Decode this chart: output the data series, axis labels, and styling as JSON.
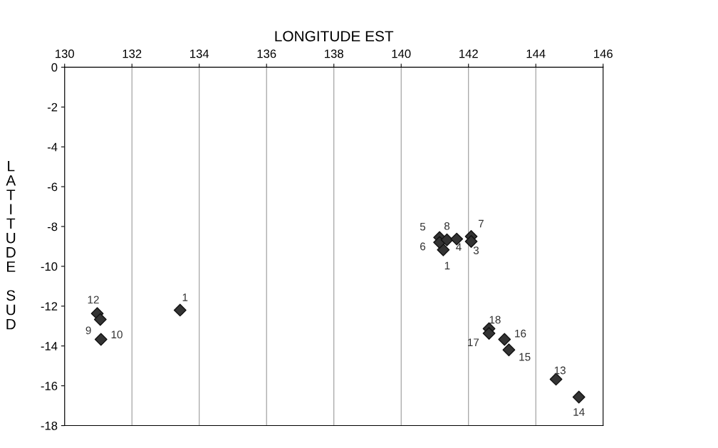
{
  "chart_data": {
    "type": "scatter",
    "xlabel": "LONGITUDE EST",
    "ylabel": "LATITUDE SUD",
    "x": [
      133.43,
      130.97,
      131.06,
      131.08,
      141.25,
      141.14,
      141.14,
      141.36,
      141.65,
      142.08,
      142.08,
      142.61,
      142.61,
      143.07,
      143.2,
      144.6,
      145.28
    ],
    "series": [
      {
        "color": "#333333",
        "values": [
          -12.2,
          -12.37,
          -12.67,
          -13.67,
          -9.17,
          -8.55,
          -8.8,
          -8.67,
          -8.63,
          -8.5,
          -8.75,
          -13.13,
          -13.37,
          -13.67,
          -14.2,
          -15.67,
          -16.57
        ]
      }
    ],
    "annotations": [
      {
        "text": "1",
        "x": 133.43,
        "y": -12.2
      },
      {
        "text": "12",
        "x": 130.97,
        "y": -12.37
      },
      {
        "text": "9",
        "x": 131.06,
        "y": -12.67
      },
      {
        "text": "10",
        "x": 131.08,
        "y": -13.67
      },
      {
        "text": "1",
        "x": 141.25,
        "y": -9.17
      },
      {
        "text": "5",
        "x": 141.14,
        "y": -8.55
      },
      {
        "text": "6",
        "x": 141.14,
        "y": -8.8
      },
      {
        "text": "8",
        "x": 141.36,
        "y": -8.67
      },
      {
        "text": "4",
        "x": 141.65,
        "y": -8.63
      },
      {
        "text": "7",
        "x": 142.08,
        "y": -8.5
      },
      {
        "text": "3",
        "x": 142.08,
        "y": -8.75
      },
      {
        "text": "18",
        "x": 142.61,
        "y": -13.13
      },
      {
        "text": "17",
        "x": 142.61,
        "y": -13.37
      },
      {
        "text": "16",
        "x": 143.07,
        "y": -13.67
      },
      {
        "text": "15",
        "x": 143.2,
        "y": -14.2
      },
      {
        "text": "13",
        "x": 144.6,
        "y": -15.67
      },
      {
        "text": "14",
        "x": 145.28,
        "y": -16.57
      }
    ],
    "xlim": [
      130,
      146
    ],
    "xticks": [
      130,
      132,
      134,
      136,
      138,
      140,
      142,
      144,
      146
    ],
    "ylim": [
      -18,
      0
    ],
    "yticks": [
      -18,
      -16,
      -14,
      -12,
      -10,
      -8,
      -6,
      -4,
      -2,
      0
    ],
    "grid": "x",
    "marker": "diamond",
    "legend": false
  }
}
